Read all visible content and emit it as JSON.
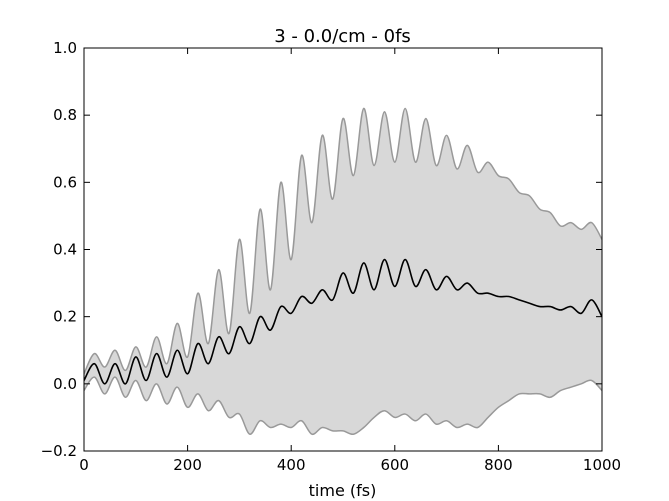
{
  "chart_data": {
    "type": "area",
    "title": "3 - 0.0/cm - 0fs",
    "xlabel": "time (fs)",
    "ylabel": "",
    "xlim": [
      0,
      1000
    ],
    "ylim": [
      -0.2,
      1.0
    ],
    "xticks": [
      0,
      200,
      400,
      600,
      800,
      1000
    ],
    "xtick_labels": [
      "0",
      "200",
      "400",
      "600",
      "800",
      "1000"
    ],
    "yticks": [
      -0.2,
      0.0,
      0.2,
      0.4,
      0.6,
      0.8,
      1.0
    ],
    "ytick_labels": [
      "−0.2",
      "0.0",
      "0.2",
      "0.4",
      "0.6",
      "0.8",
      "1.0"
    ],
    "grid": false,
    "colors": {
      "band_fill": "#d8d8d8",
      "band_edge": "#999999",
      "mean_line": "#000000",
      "axes": "#000000"
    },
    "x": [
      0,
      20,
      40,
      60,
      80,
      100,
      120,
      140,
      160,
      180,
      200,
      220,
      240,
      260,
      280,
      300,
      320,
      340,
      360,
      380,
      400,
      420,
      440,
      460,
      480,
      500,
      520,
      540,
      560,
      580,
      600,
      620,
      640,
      660,
      680,
      700,
      720,
      740,
      760,
      780,
      800,
      820,
      840,
      860,
      880,
      900,
      920,
      940,
      960,
      980,
      1000
    ],
    "series": [
      {
        "role": "upper",
        "values": [
          0.03,
          0.09,
          0.05,
          0.1,
          0.04,
          0.11,
          0.05,
          0.14,
          0.06,
          0.18,
          0.08,
          0.27,
          0.12,
          0.34,
          0.15,
          0.43,
          0.21,
          0.52,
          0.28,
          0.6,
          0.37,
          0.68,
          0.48,
          0.74,
          0.55,
          0.79,
          0.62,
          0.82,
          0.65,
          0.81,
          0.66,
          0.82,
          0.66,
          0.79,
          0.65,
          0.74,
          0.64,
          0.71,
          0.63,
          0.66,
          0.62,
          0.61,
          0.57,
          0.56,
          0.52,
          0.51,
          0.47,
          0.48,
          0.46,
          0.48,
          0.43
        ]
      },
      {
        "role": "mean",
        "values": [
          0.01,
          0.06,
          0.0,
          0.06,
          0.0,
          0.08,
          0.01,
          0.09,
          0.02,
          0.1,
          0.03,
          0.12,
          0.06,
          0.14,
          0.09,
          0.17,
          0.12,
          0.2,
          0.16,
          0.23,
          0.21,
          0.26,
          0.24,
          0.28,
          0.25,
          0.33,
          0.27,
          0.36,
          0.28,
          0.37,
          0.29,
          0.37,
          0.29,
          0.34,
          0.28,
          0.32,
          0.28,
          0.3,
          0.27,
          0.27,
          0.26,
          0.26,
          0.25,
          0.24,
          0.23,
          0.23,
          0.22,
          0.23,
          0.21,
          0.25,
          0.2
        ]
      },
      {
        "role": "lower",
        "values": [
          -0.02,
          0.02,
          -0.03,
          0.02,
          -0.04,
          0.01,
          -0.05,
          0.0,
          -0.06,
          -0.01,
          -0.07,
          -0.03,
          -0.08,
          -0.05,
          -0.1,
          -0.09,
          -0.15,
          -0.11,
          -0.13,
          -0.12,
          -0.13,
          -0.11,
          -0.15,
          -0.13,
          -0.14,
          -0.14,
          -0.15,
          -0.13,
          -0.1,
          -0.08,
          -0.1,
          -0.09,
          -0.11,
          -0.09,
          -0.12,
          -0.11,
          -0.13,
          -0.12,
          -0.13,
          -0.1,
          -0.07,
          -0.05,
          -0.03,
          -0.03,
          -0.03,
          -0.04,
          -0.02,
          -0.01,
          0.0,
          0.01,
          -0.02
        ]
      }
    ]
  }
}
